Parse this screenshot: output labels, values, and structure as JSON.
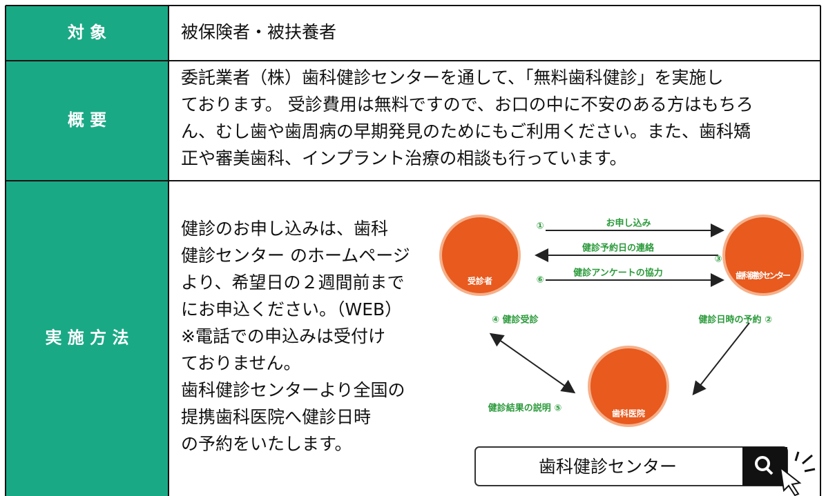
{
  "table": {
    "rows": [
      {
        "label": "対 象",
        "lines": [
          "被保険者・被扶養者"
        ]
      },
      {
        "label": "概 要",
        "lines": [
          "委託業者（株）歯科健診センターを通して、「無料歯科健診」を実施し",
          "ております。 受診費用は無料ですので、お口の中に不安のある方はもちろ",
          "ん、むし歯や歯周病の早期発見のためにもご利用ください。また、歯科矯",
          "正や審美歯科、インプラント治療の相談も行っています。"
        ]
      },
      {
        "label": "実 施 方 法",
        "lines": [
          "健診のお申し込みは、歯科",
          "健診センター のホームページ",
          "より、希望日の２週間前まで",
          "にお申込ください。（WEB）",
          "※電話での申込みは受付け",
          "ておりません。",
          "歯科健診センターより全国の",
          "提携歯科医院へ健診日時",
          "の予約をいたします。"
        ]
      }
    ]
  },
  "diagram": {
    "nodes": [
      "受診者",
      "歯科健診センター",
      "歯科医院"
    ],
    "steps": [
      "①",
      "お申し込み",
      "健診予約日の連絡",
      "③",
      "⑥",
      "健診アンケートの協力",
      "④ 健診受診",
      "健診日時の予約 ②",
      "健診結果の説明 ⑤"
    ],
    "search": "歯科健診センター"
  }
}
